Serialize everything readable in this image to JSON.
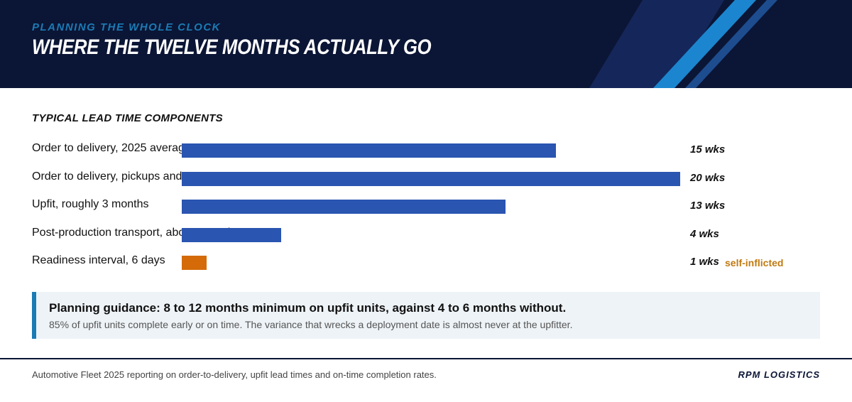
{
  "header": {
    "kicker": "PLANNING THE WHOLE CLOCK",
    "title": "WHERE THE TWELVE MONTHS ACTUALLY GO"
  },
  "colors": {
    "header_bg": "#0b1535",
    "accent": "#1b7bb5",
    "bar_primary": "#2a55b0",
    "bar_self_inflicted": "#d46b08",
    "note_color": "#c07a12"
  },
  "chart_data": {
    "type": "bar",
    "orientation": "horizontal",
    "title": "TYPICAL LEAD TIME COMPONENTS",
    "categories": [
      "Order to delivery, 2025 average",
      "Order to delivery, pickups and vans",
      "Upfit, roughly 3 months",
      "Post-production transport, about 4 weeks",
      "Readiness interval, 6 days"
    ],
    "values": [
      15,
      20,
      13,
      4,
      1
    ],
    "value_labels": [
      "15 wks",
      "20 wks",
      "13 wks",
      "4 wks",
      "1 wks"
    ],
    "notes": [
      "",
      "",
      "",
      "",
      "self-inflicted"
    ],
    "highlight_index": 4,
    "xlim": [
      0,
      20
    ]
  },
  "callout": {
    "headline": "Planning guidance: 8 to 12 months minimum on upfit units, against 4 to 6 months without.",
    "detail": "85% of upfit units complete early or on time. The variance that wrecks a deployment date is almost never at the upfitter."
  },
  "footer": {
    "source": "Automotive Fleet 2025 reporting on order-to-delivery, upfit lead times and on-time completion rates.",
    "brand": "RPM LOGISTICS"
  }
}
